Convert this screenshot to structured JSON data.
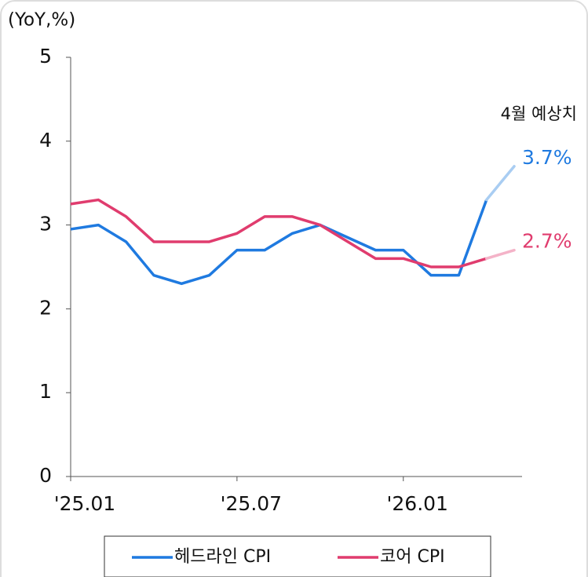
{
  "chart_data": {
    "type": "line",
    "y_axis_label": "(YoY,%)",
    "annotation": "4월 예상치",
    "categories": [
      "'25.01",
      null,
      null,
      null,
      null,
      null,
      "'25.07",
      null,
      null,
      null,
      null,
      null,
      "'26.01",
      null,
      null,
      null,
      null
    ],
    "series": [
      {
        "name": "헤드라인 CPI",
        "color": "#1f7ae0",
        "forecast_color": "#a9cdf2",
        "values": [
          2.95,
          3.0,
          2.8,
          2.4,
          2.3,
          2.4,
          2.7,
          2.7,
          2.9,
          3.0,
          2.85,
          2.7,
          2.7,
          2.4,
          2.4,
          3.3,
          3.7
        ],
        "value_labels": [
          null,
          null,
          null,
          null,
          null,
          null,
          null,
          null,
          null,
          null,
          null,
          null,
          null,
          null,
          null,
          null,
          "3.7%"
        ]
      },
      {
        "name": "코어 CPI",
        "color": "#e03c6e",
        "forecast_color": "#f4b3c8",
        "values": [
          3.25,
          3.3,
          3.1,
          2.8,
          2.8,
          2.8,
          2.9,
          3.1,
          3.1,
          3.0,
          2.8,
          2.6,
          2.6,
          2.5,
          2.5,
          2.6,
          2.7
        ],
        "value_labels": [
          null,
          null,
          null,
          null,
          null,
          null,
          null,
          null,
          null,
          null,
          null,
          null,
          null,
          null,
          null,
          null,
          "2.7%"
        ]
      }
    ],
    "ylim": [
      0,
      5
    ],
    "yticks": [
      0,
      1,
      2,
      3,
      4,
      5
    ],
    "grid": false
  }
}
